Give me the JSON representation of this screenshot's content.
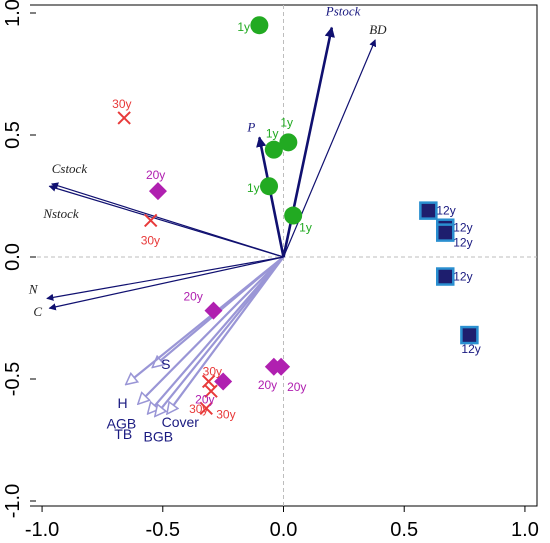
{
  "chart_data": {
    "type": "biplot",
    "title": "",
    "xlabel": "",
    "ylabel": "",
    "xlim": [
      -1.05,
      1.05
    ],
    "ylim": [
      -1.0,
      1.0
    ],
    "x_ticks": [
      "-1.0",
      "-0.5",
      "0.0",
      "0.5",
      "1.0"
    ],
    "y_ticks": [
      "-1.0",
      "-0.5",
      "0.0",
      "0.5",
      "1.0"
    ],
    "zero_lines": true,
    "colors": {
      "group_1y": "#22aa22",
      "group_12y": "#1e1e6e",
      "group_12y_border": "#2a8fd0",
      "group_20y": "#b020b0",
      "group_30y": "#e83a3a",
      "env_arrow": "#101070",
      "response_arrow": "#9a96d6",
      "label_dark": "#1a1a80"
    },
    "groups": [
      {
        "name": "1y",
        "marker": "circle",
        "points": [
          {
            "x": -0.1,
            "y": 0.95,
            "label": "1y"
          },
          {
            "x": -0.04,
            "y": 0.44,
            "label": "1y"
          },
          {
            "x": 0.02,
            "y": 0.47,
            "label": "1y"
          },
          {
            "x": -0.06,
            "y": 0.29,
            "label": "1y"
          },
          {
            "x": 0.04,
            "y": 0.17,
            "label": "1y"
          }
        ]
      },
      {
        "name": "12y",
        "marker": "square",
        "points": [
          {
            "x": 0.6,
            "y": 0.19,
            "label": "12y"
          },
          {
            "x": 0.67,
            "y": 0.12,
            "label": "12y"
          },
          {
            "x": 0.67,
            "y": 0.1,
            "label": "12y"
          },
          {
            "x": 0.67,
            "y": -0.08,
            "label": "12y"
          },
          {
            "x": 0.77,
            "y": -0.32,
            "label": "12y"
          }
        ]
      },
      {
        "name": "20y",
        "marker": "diamond",
        "points": [
          {
            "x": -0.52,
            "y": 0.27,
            "label": "20y"
          },
          {
            "x": -0.29,
            "y": -0.22,
            "label": "20y"
          },
          {
            "x": -0.25,
            "y": -0.51,
            "label": "20y"
          },
          {
            "x": -0.04,
            "y": -0.45,
            "label": "20y"
          },
          {
            "x": -0.01,
            "y": -0.45,
            "label": "20y"
          }
        ]
      },
      {
        "name": "30y",
        "marker": "cross",
        "points": [
          {
            "x": -0.66,
            "y": 0.57,
            "label": "30y"
          },
          {
            "x": -0.55,
            "y": 0.15,
            "label": "30y"
          },
          {
            "x": -0.31,
            "y": -0.51,
            "label": "30y"
          },
          {
            "x": -0.3,
            "y": -0.55,
            "label": "30y"
          },
          {
            "x": -0.32,
            "y": -0.62,
            "label": "30y"
          }
        ]
      }
    ],
    "env_vectors": [
      {
        "name": "Pstock",
        "x": 0.2,
        "y": 0.94
      },
      {
        "name": "BD",
        "x": 0.38,
        "y": 0.89
      },
      {
        "name": "P",
        "x": -0.1,
        "y": 0.49
      },
      {
        "name": "Cstock",
        "x": -0.96,
        "y": 0.3
      },
      {
        "name": "Nstock",
        "x": -0.97,
        "y": 0.29
      },
      {
        "name": "N",
        "x": -0.98,
        "y": -0.17
      },
      {
        "name": "C",
        "x": -0.97,
        "y": -0.21
      }
    ],
    "response_vectors": [
      {
        "name": "S",
        "x": -0.54,
        "y": -0.45
      },
      {
        "name": "H",
        "x": -0.65,
        "y": -0.52
      },
      {
        "name": "AGB",
        "x": -0.6,
        "y": -0.6
      },
      {
        "name": "TB",
        "x": -0.56,
        "y": -0.64
      },
      {
        "name": "BGB",
        "x": -0.53,
        "y": -0.65
      },
      {
        "name": "Cover",
        "x": -0.48,
        "y": -0.64
      }
    ]
  }
}
